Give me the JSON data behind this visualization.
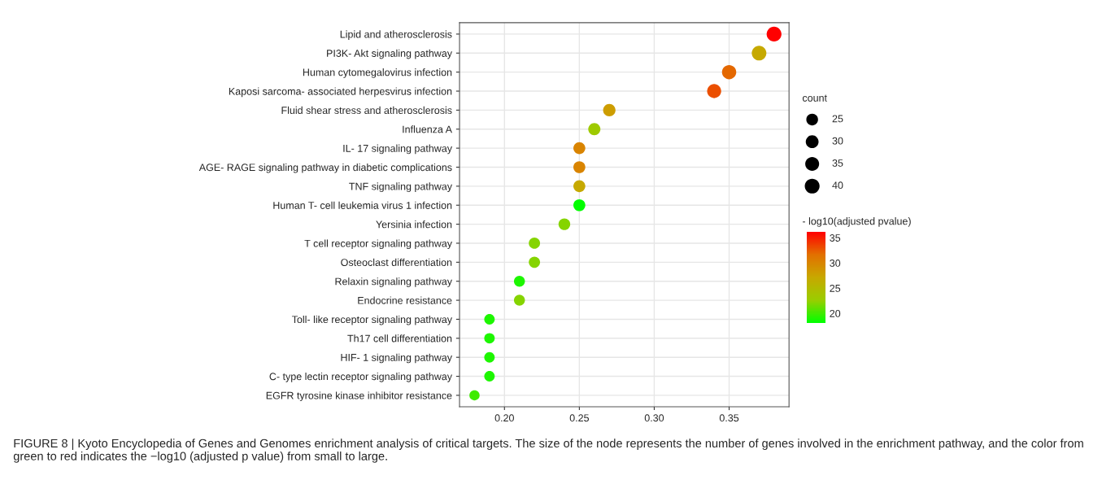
{
  "chart_data": {
    "type": "bubble",
    "categories": [
      "Lipid and atherosclerosis",
      "PI3K- Akt signaling pathway",
      "Human cytomegalovirus infection",
      "Kaposi sarcoma- associated herpesvirus infection",
      "Fluid shear stress and atherosclerosis",
      "Influenza A",
      "IL- 17 signaling pathway",
      "AGE- RAGE signaling pathway in diabetic complications",
      "TNF signaling pathway",
      "Human T- cell leukemia virus 1 infection",
      "Yersinia infection",
      "T cell receptor signaling pathway",
      "Osteoclast differentiation",
      "Relaxin signaling pathway",
      "Endocrine resistance",
      "Toll- like receptor signaling pathway",
      "Th17 cell differentiation",
      "HIF- 1 signaling pathway",
      "C- type lectin receptor signaling pathway",
      "EGFR tyrosine kinase inhibitor resistance"
    ],
    "values": [
      0.38,
      0.37,
      0.35,
      0.34,
      0.27,
      0.26,
      0.25,
      0.25,
      0.25,
      0.25,
      0.24,
      0.22,
      0.22,
      0.21,
      0.21,
      0.19,
      0.19,
      0.19,
      0.19,
      0.18
    ],
    "sizes": [
      40,
      39,
      37,
      36,
      28,
      27,
      26,
      26,
      26,
      26,
      25,
      23,
      23,
      22,
      22,
      20,
      20,
      20,
      20,
      19
    ],
    "cvalues": [
      36.2,
      27,
      32,
      33,
      28,
      23,
      30,
      30,
      27,
      18.2,
      22,
      22,
      22,
      19,
      22,
      19,
      19,
      19,
      19,
      20
    ],
    "size_legend": [
      25,
      30,
      35,
      40
    ],
    "legend_title": "count",
    "clabel": "- log10(adjusted pvalue)",
    "clim": [
      18.1,
      36.2
    ],
    "cticks": [
      20,
      25,
      30,
      35
    ],
    "orientation": "horizontal",
    "xlim": [
      0.17,
      0.39
    ],
    "xticks": [
      {
        "value": 0.2,
        "label": "0.20"
      },
      {
        "value": 0.25,
        "label": "0.25"
      },
      {
        "value": 0.3,
        "label": "0.30"
      },
      {
        "value": 0.35,
        "label": "0.35"
      }
    ],
    "grid": true,
    "annotations": [
      "FIGURE 8 | Kyoto Encyclopedia of Genes and Genomes enrichment analysis of critical targets. The size of the node represents the number of genes involved in the enrichment pathway, and the color from green to red indicates the −log10 (adjusted p value) from small to large."
    ]
  }
}
